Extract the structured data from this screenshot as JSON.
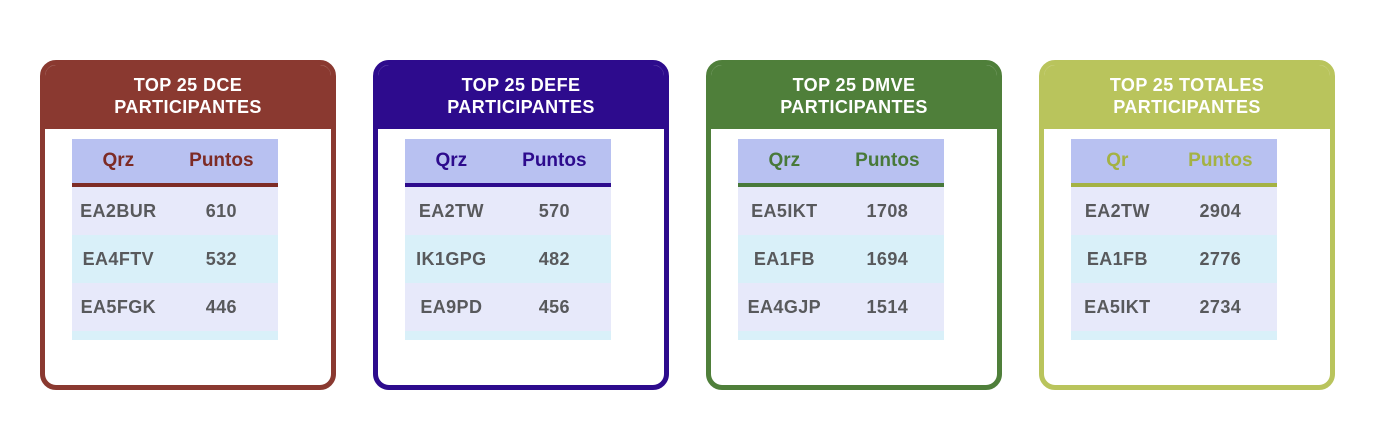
{
  "palette": {
    "page_bg": "#ffffff",
    "table_header_bg": "#b8c1f1",
    "row_odd_bg": "#e7e9fa",
    "row_even_bg": "#d9f0f9",
    "data_text": "#58595c",
    "header_title_text": "#ffffff"
  },
  "cards": [
    {
      "title_line1": "TOP 25 DCE",
      "title_line2": "PARTICIPANTES",
      "colors": {
        "accent": "#8a3930",
        "table_accent": "#7d2b25"
      },
      "columns": [
        "Qrz",
        "Puntos"
      ],
      "rows": [
        {
          "qrz": "EA2BUR",
          "puntos": "610"
        },
        {
          "qrz": "EA4FTV",
          "puntos": "532"
        },
        {
          "qrz": "EA5FGK",
          "puntos": "446"
        }
      ]
    },
    {
      "title_line1": "TOP 25 DEFE",
      "title_line2": "PARTICIPANTES",
      "colors": {
        "accent": "#2d0b8d",
        "table_accent": "#2d0b8d"
      },
      "columns": [
        "Qrz",
        "Puntos"
      ],
      "rows": [
        {
          "qrz": "EA2TW",
          "puntos": "570"
        },
        {
          "qrz": "IK1GPG",
          "puntos": "482"
        },
        {
          "qrz": "EA9PD",
          "puntos": "456"
        }
      ]
    },
    {
      "title_line1": "TOP 25 DMVE",
      "title_line2": "PARTICIPANTES",
      "colors": {
        "accent": "#4f7f3a",
        "table_accent": "#48793a"
      },
      "columns": [
        "Qrz",
        "Puntos"
      ],
      "rows": [
        {
          "qrz": "EA5IKT",
          "puntos": "1708"
        },
        {
          "qrz": "EA1FB",
          "puntos": "1694"
        },
        {
          "qrz": "EA4GJP",
          "puntos": "1514"
        }
      ]
    },
    {
      "title_line1": "TOP 25 TOTALES",
      "title_line2": "PARTICIPANTES",
      "colors": {
        "accent": "#b9c45c",
        "table_accent": "#a4b243"
      },
      "columns": [
        "Qr",
        "Puntos"
      ],
      "rows": [
        {
          "qrz": "EA2TW",
          "puntos": "2904"
        },
        {
          "qrz": "EA1FB",
          "puntos": "2776"
        },
        {
          "qrz": "EA5IKT",
          "puntos": "2734"
        }
      ]
    }
  ],
  "chart_data": [
    {
      "type": "table",
      "title": "TOP 25 DCE PARTICIPANTES",
      "columns": [
        "Qrz",
        "Puntos"
      ],
      "rows": [
        [
          "EA2BUR",
          610
        ],
        [
          "EA4FTV",
          532
        ],
        [
          "EA5FGK",
          446
        ]
      ]
    },
    {
      "type": "table",
      "title": "TOP 25 DEFE PARTICIPANTES",
      "columns": [
        "Qrz",
        "Puntos"
      ],
      "rows": [
        [
          "EA2TW",
          570
        ],
        [
          "IK1GPG",
          482
        ],
        [
          "EA9PD",
          456
        ]
      ]
    },
    {
      "type": "table",
      "title": "TOP 25 DMVE PARTICIPANTES",
      "columns": [
        "Qrz",
        "Puntos"
      ],
      "rows": [
        [
          "EA5IKT",
          1708
        ],
        [
          "EA1FB",
          1694
        ],
        [
          "EA4GJP",
          1514
        ]
      ]
    },
    {
      "type": "table",
      "title": "TOP 25 TOTALES PARTICIPANTES",
      "columns": [
        "Qr",
        "Puntos"
      ],
      "rows": [
        [
          "EA2TW",
          2904
        ],
        [
          "EA1FB",
          2776
        ],
        [
          "EA5IKT",
          2734
        ]
      ]
    }
  ]
}
